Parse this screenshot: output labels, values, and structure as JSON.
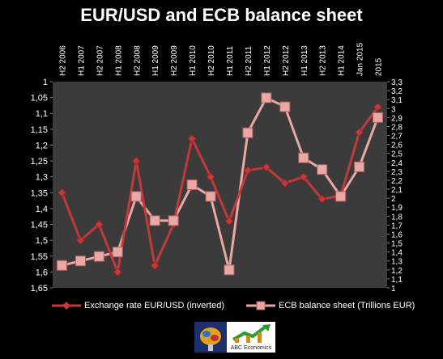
{
  "chart_data": {
    "type": "line",
    "title": "EUR/USD and ECB balance sheet",
    "categories": [
      "H2 2006",
      "H1 2007",
      "H2 2007",
      "H1 2008",
      "H2 2008",
      "H1 2009",
      "H2 2009",
      "H1 2010",
      "H2 2010",
      "H1 2011",
      "H2 2011",
      "H1 2012",
      "H2 2012",
      "H1 2013",
      "H2 2013",
      "H1 2014",
      "Jan 2015",
      "2015"
    ],
    "left_axis": {
      "ticks": [
        "1",
        "1,05",
        "1,1",
        "1,15",
        "1,2",
        "1,25",
        "1,3",
        "1,35",
        "1,4",
        "1,45",
        "1,5",
        "1,55",
        "1,6",
        "1,65"
      ],
      "range": [
        1.0,
        1.65
      ],
      "inverted": true
    },
    "right_axis": {
      "ticks": [
        "3,3",
        "3,2",
        "3,1",
        "3",
        "2,9",
        "2,8",
        "2,7",
        "2,6",
        "2,5",
        "2,4",
        "2,3",
        "2,2",
        "2,1",
        "2",
        "1,9",
        "1,8",
        "1,7",
        "1,6",
        "1,5",
        "1,4",
        "1,3",
        "1,2",
        "1,1",
        "1"
      ],
      "range": [
        1.0,
        3.3
      ]
    },
    "series": [
      {
        "name": "Exchange rate EUR/USD (inverted)",
        "axis": "left",
        "color": "#c0393c",
        "marker": "diamond",
        "values": [
          1.35,
          1.5,
          1.45,
          1.6,
          1.25,
          1.58,
          1.45,
          1.18,
          1.3,
          1.44,
          1.28,
          1.27,
          1.32,
          1.3,
          1.37,
          1.36,
          1.16,
          1.08
        ]
      },
      {
        "name": "ECB balance sheet (Trillions EUR)",
        "axis": "right",
        "color": "#eaa8a4",
        "marker": "square",
        "values": [
          1.25,
          1.3,
          1.35,
          1.4,
          2.02,
          1.75,
          1.75,
          2.15,
          2.02,
          1.2,
          2.73,
          3.12,
          3.02,
          2.45,
          2.32,
          2.02,
          2.35,
          2.9
        ]
      }
    ],
    "legend_position": "bottom",
    "grid": false
  },
  "logo": {
    "text": "ABC Economics"
  }
}
